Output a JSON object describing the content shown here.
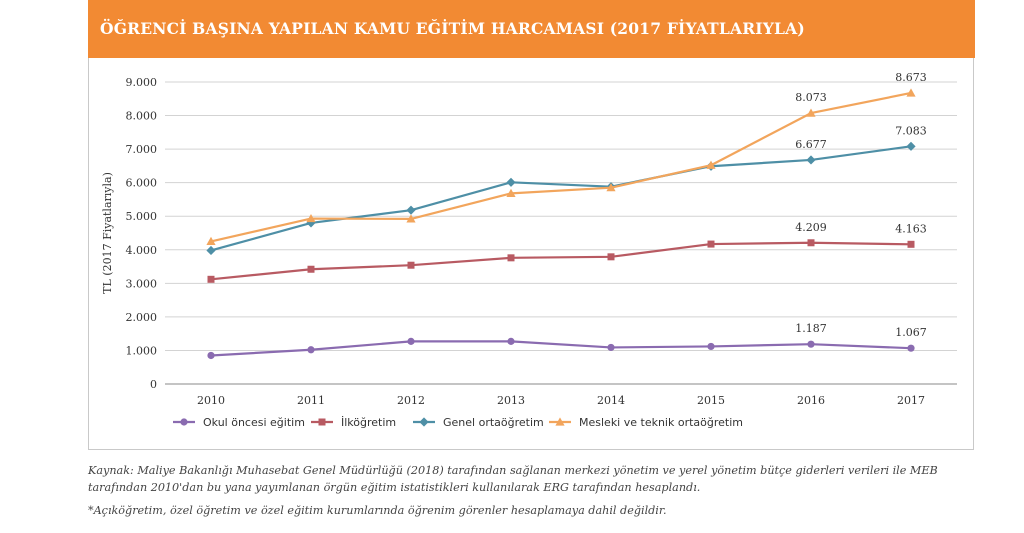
{
  "header": {
    "title": "ÖĞRENCİ BAŞINA YAPILAN KAMU EĞİTİM HARCAMASI (2017 FİYATLARIYLA)"
  },
  "colors": {
    "header_bg": "#f28a33"
  },
  "chart_data": {
    "type": "line",
    "title": "ÖĞRENCİ BAŞINA YAPILAN KAMU EĞİTİM HARCAMASI (2017 FİYATLARIYLA)",
    "ylabel": "TL (2017 Fiyatlarıyla)",
    "xlabel": "",
    "x": [
      "2010",
      "2011",
      "2012",
      "2013",
      "2014",
      "2015",
      "2016",
      "2017"
    ],
    "ylim": [
      0,
      9000
    ],
    "yticks": [
      0,
      1000,
      2000,
      3000,
      4000,
      5000,
      6000,
      7000,
      8000,
      9000
    ],
    "ytick_labels": [
      "0",
      "1.000",
      "2.000",
      "3.000",
      "4.000",
      "5.000",
      "6.000",
      "7.000",
      "8.000",
      "9.000"
    ],
    "grid": "horizontal",
    "legend_position": "bottom",
    "series": [
      {
        "name": "Okul öncesi eğitim",
        "color": "#8a6bb0",
        "marker": "circle",
        "values": [
          850,
          1020,
          1270,
          1270,
          1090,
          1120,
          1187,
          1067
        ],
        "labels": [
          "",
          "",
          "",
          "",
          "",
          "",
          "1.187",
          "1.067"
        ]
      },
      {
        "name": "İlköğretim",
        "color": "#b85a62",
        "marker": "square",
        "values": [
          3120,
          3420,
          3540,
          3760,
          3790,
          4170,
          4209,
          4163
        ],
        "labels": [
          "",
          "",
          "",
          "",
          "",
          "",
          "4.209",
          "4.163"
        ]
      },
      {
        "name": "Genel ortaöğretim",
        "color": "#4e8fa6",
        "marker": "diamond",
        "values": [
          3980,
          4800,
          5180,
          6010,
          5880,
          6490,
          6677,
          7083
        ],
        "labels": [
          "",
          "",
          "",
          "",
          "",
          "",
          "6.677",
          "7.083"
        ]
      },
      {
        "name": "Mesleki ve teknik ortaöğretim",
        "color": "#f2a55c",
        "marker": "triangle",
        "values": [
          4250,
          4930,
          4920,
          5680,
          5850,
          6520,
          8073,
          8673
        ],
        "labels": [
          "",
          "",
          "",
          "",
          "",
          "",
          "8.073",
          "8.673"
        ]
      }
    ]
  },
  "footnotes": {
    "source": "Kaynak: Maliye Bakanlığı Muhasebat Genel Müdürlüğü (2018) tarafından sağlanan merkezi yönetim ve yerel yönetim bütçe giderleri verileri ile MEB tarafından 2010'dan bu yana yayımlanan örgün eğitim istatistikleri kullanılarak ERG tarafından hesaplandı.",
    "note": "*Açıköğretim, özel öğretim ve özel eğitim kurumlarında öğrenim görenler hesaplamaya dahil değildir."
  }
}
